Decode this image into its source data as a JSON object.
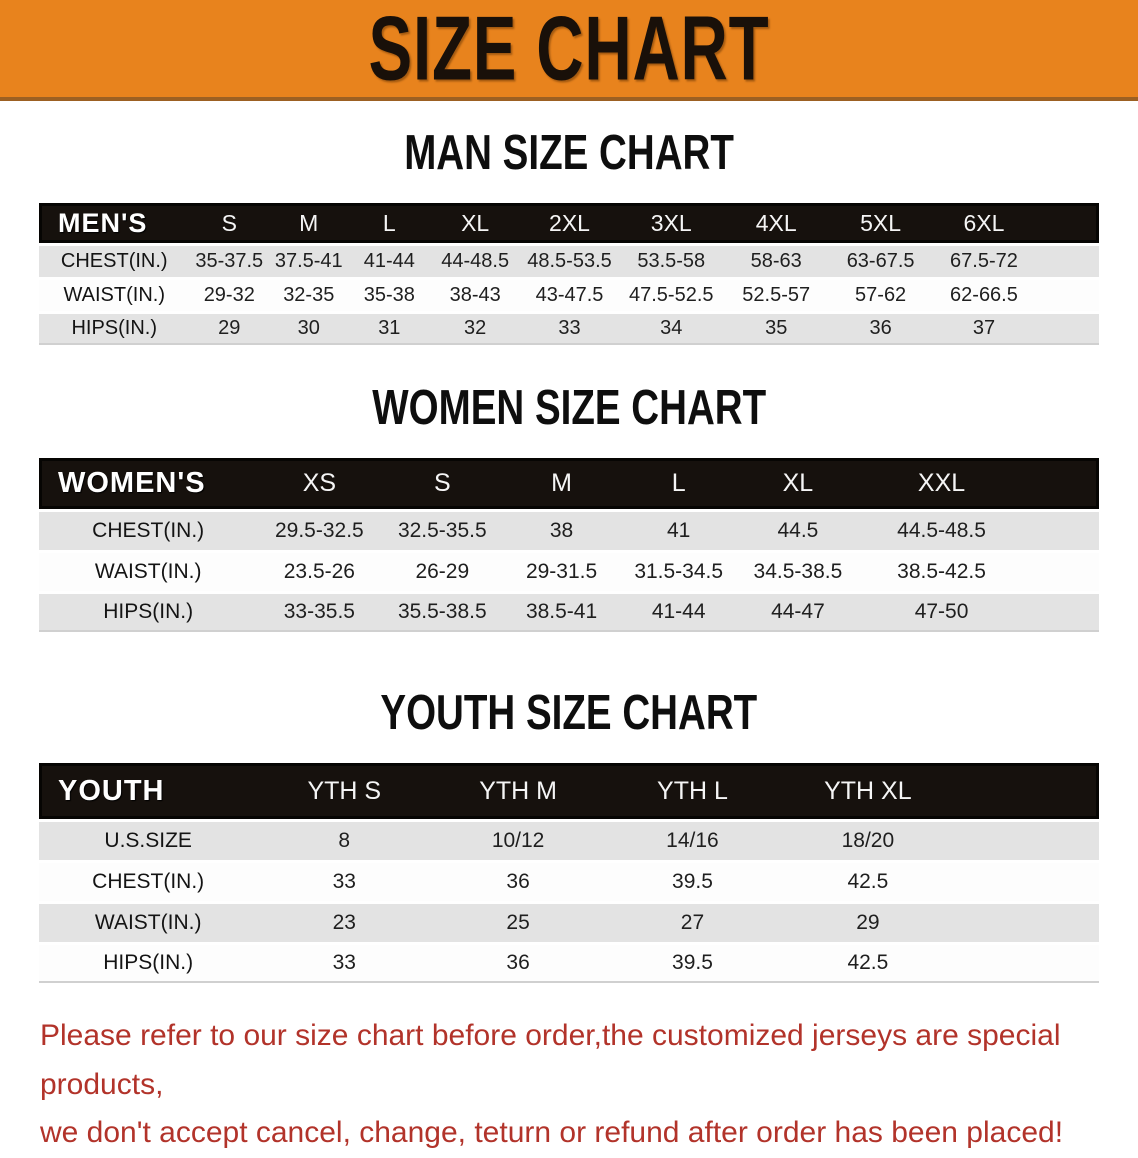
{
  "banner": {
    "title": "SIZE CHART",
    "accent_color": "#E8831D"
  },
  "sections": [
    {
      "id": "men",
      "heading": "MAN SIZE CHART",
      "corner": "MEN'S",
      "columns": [
        "S",
        "M",
        "L",
        "XL",
        "2XL",
        "3XL",
        "4XL",
        "5XL",
        "6XL"
      ],
      "rows": [
        {
          "label": "CHEST(IN.)",
          "values": [
            "35-37.5",
            "37.5-41",
            "41-44",
            "44-48.5",
            "48.5-53.5",
            "53.5-58",
            "58-63",
            "63-67.5",
            "67.5-72"
          ]
        },
        {
          "label": "WAIST(IN.)",
          "values": [
            "29-32",
            "32-35",
            "35-38",
            "38-43",
            "43-47.5",
            "47.5-52.5",
            "52.5-57",
            "57-62",
            "62-66.5"
          ]
        },
        {
          "label": "HIPS(IN.)",
          "values": [
            "29",
            "30",
            "31",
            "32",
            "33",
            "34",
            "35",
            "36",
            "37"
          ]
        }
      ]
    },
    {
      "id": "women",
      "heading": "WOMEN SIZE CHART",
      "corner": "WOMEN'S",
      "columns": [
        "XS",
        "S",
        "M",
        "L",
        "XL",
        "XXL"
      ],
      "rows": [
        {
          "label": "CHEST(IN.)",
          "values": [
            "29.5-32.5",
            "32.5-35.5",
            "38",
            "41",
            "44.5",
            "44.5-48.5"
          ]
        },
        {
          "label": "WAIST(IN.)",
          "values": [
            "23.5-26",
            "26-29",
            "29-31.5",
            "31.5-34.5",
            "34.5-38.5",
            "38.5-42.5"
          ]
        },
        {
          "label": "HIPS(IN.)",
          "values": [
            "33-35.5",
            "35.5-38.5",
            "38.5-41",
            "41-44",
            "44-47",
            "47-50"
          ]
        }
      ]
    },
    {
      "id": "youth",
      "heading": "YOUTH SIZE CHART",
      "corner": "YOUTH",
      "columns": [
        "YTH S",
        "YTH M",
        "YTH L",
        "YTH XL"
      ],
      "rows": [
        {
          "label": "U.S.SIZE",
          "values": [
            "8",
            "10/12",
            "14/16",
            "18/20"
          ]
        },
        {
          "label": "CHEST(IN.)",
          "values": [
            "33",
            "36",
            "39.5",
            "42.5"
          ]
        },
        {
          "label": "WAIST(IN.)",
          "values": [
            "23",
            "25",
            "27",
            "29"
          ]
        },
        {
          "label": "HIPS(IN.)",
          "values": [
            "33",
            "36",
            "39.5",
            "42.5"
          ]
        }
      ]
    }
  ],
  "footer": {
    "lines": [
      "Please refer to our size chart before order,the customized jerseys are special products,",
      "we don't accept cancel, change, teturn or refund after order has been placed!"
    ],
    "text_color": "#B2332A"
  }
}
